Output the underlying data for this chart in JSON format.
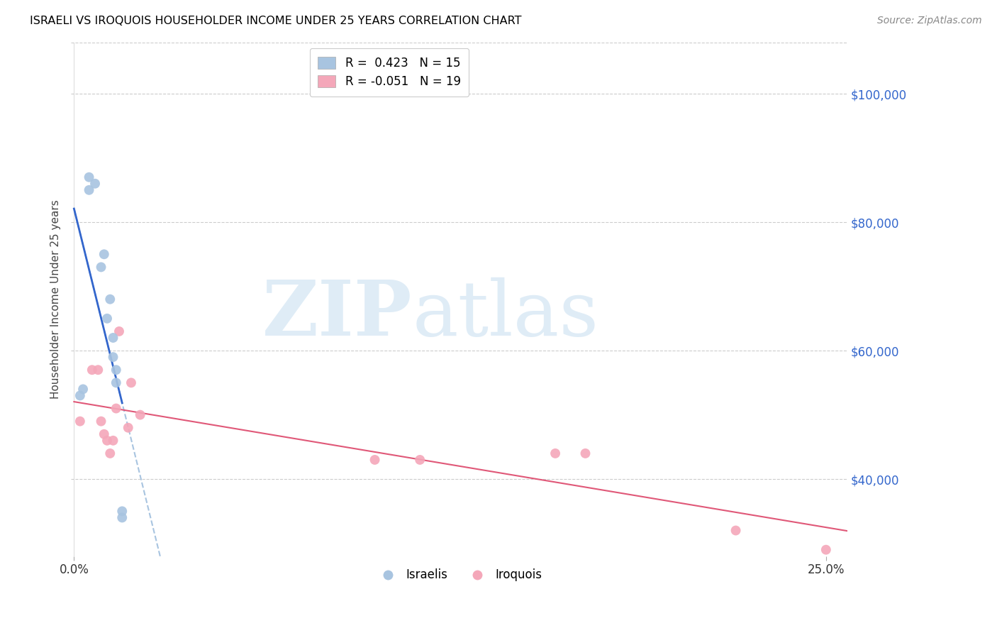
{
  "title": "ISRAELI VS IROQUOIS HOUSEHOLDER INCOME UNDER 25 YEARS CORRELATION CHART",
  "source": "Source: ZipAtlas.com",
  "ylabel": "Householder Income Under 25 years",
  "ytick_labels": [
    "$100,000",
    "$80,000",
    "$60,000",
    "$40,000"
  ],
  "ytick_values": [
    100000,
    80000,
    60000,
    40000
  ],
  "ylim": [
    28000,
    108000
  ],
  "xlim": [
    -0.001,
    0.257
  ],
  "legend_israeli": "R =  0.423   N = 15",
  "legend_iroquois": "R = -0.051   N = 19",
  "israelis_x": [
    0.002,
    0.003,
    0.005,
    0.005,
    0.007,
    0.009,
    0.01,
    0.011,
    0.012,
    0.013,
    0.013,
    0.014,
    0.014,
    0.016,
    0.016
  ],
  "israelis_y": [
    53000,
    54000,
    85000,
    87000,
    86000,
    73000,
    75000,
    65000,
    68000,
    62000,
    59000,
    57000,
    55000,
    35000,
    34000
  ],
  "iroquois_x": [
    0.002,
    0.006,
    0.008,
    0.009,
    0.01,
    0.011,
    0.012,
    0.013,
    0.014,
    0.015,
    0.018,
    0.019,
    0.022,
    0.1,
    0.115,
    0.16,
    0.17,
    0.22,
    0.25
  ],
  "iroquois_y": [
    49000,
    57000,
    57000,
    49000,
    47000,
    46000,
    44000,
    46000,
    51000,
    63000,
    48000,
    55000,
    50000,
    43000,
    43000,
    44000,
    44000,
    32000,
    29000
  ],
  "israeli_color": "#a8c4e0",
  "iroquois_color": "#f4a7b9",
  "israeli_line_color": "#3366cc",
  "iroquois_line_color": "#e05878",
  "israeli_dashed_color": "#a8c4e0",
  "background_color": "#ffffff",
  "grid_color": "#cccccc",
  "title_color": "#000000",
  "source_color": "#888888",
  "axis_label_color": "#3366cc",
  "marker_size": 100,
  "watermark_zip_color": "#c5ddf0",
  "watermark_atlas_color": "#c5ddf0"
}
